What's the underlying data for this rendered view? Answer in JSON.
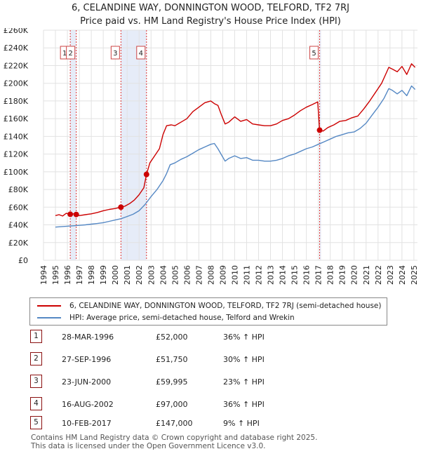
{
  "title_line1": "6, CELANDINE WAY, DONNINGTON WOOD, TELFORD, TF2 7RJ",
  "title_line2": "Price paid vs. HM Land Registry's House Price Index (HPI)",
  "chart_data": {
    "type": "line",
    "ylim": [
      0,
      260000
    ],
    "xlim": [
      1994,
      2025.3
    ],
    "y_ticks": [
      0,
      20000,
      40000,
      60000,
      80000,
      100000,
      120000,
      140000,
      160000,
      180000,
      200000,
      220000,
      240000,
      260000
    ],
    "y_tick_labels": [
      "£0",
      "£20K",
      "£40K",
      "£60K",
      "£80K",
      "£100K",
      "£120K",
      "£140K",
      "£160K",
      "£180K",
      "£200K",
      "£220K",
      "£240K",
      "£260K"
    ],
    "x_ticks": [
      1994,
      1995,
      1996,
      1997,
      1998,
      1999,
      2000,
      2001,
      2002,
      2003,
      2004,
      2005,
      2006,
      2007,
      2008,
      2009,
      2010,
      2011,
      2012,
      2013,
      2014,
      2015,
      2016,
      2017,
      2018,
      2019,
      2020,
      2021,
      2022,
      2023,
      2024,
      2025
    ],
    "x_tick_labels": [
      "1994",
      "1995",
      "1996",
      "1997",
      "1998",
      "1999",
      "2000",
      "2001",
      "2002",
      "2003",
      "2004",
      "2005",
      "2006",
      "2007",
      "2008",
      "2009",
      "2010",
      "2011",
      "2012",
      "2013",
      "2014",
      "2015",
      "2016",
      "2017",
      "2018",
      "2019",
      "2020",
      "2021",
      "2022",
      "2023",
      "2024",
      "2025"
    ],
    "series": [
      {
        "name": "6, CELANDINE WAY, DONNINGTON WOOD, TELFORD, TF2 7RJ (semi-detached house)",
        "color": "#cc0000",
        "points": [
          [
            1995.0,
            50500
          ],
          [
            1995.3,
            51500
          ],
          [
            1995.6,
            50000
          ],
          [
            1995.9,
            53000
          ],
          [
            1996.24,
            52000
          ],
          [
            1996.5,
            52500
          ],
          [
            1996.74,
            51750
          ],
          [
            1997.0,
            50500
          ],
          [
            1997.5,
            51500
          ],
          [
            1998.0,
            52500
          ],
          [
            1998.5,
            54000
          ],
          [
            1999.0,
            56000
          ],
          [
            1999.5,
            57500
          ],
          [
            2000.0,
            58500
          ],
          [
            2000.48,
            59995
          ],
          [
            2000.8,
            61000
          ],
          [
            2001.2,
            64000
          ],
          [
            2001.6,
            68000
          ],
          [
            2002.0,
            74000
          ],
          [
            2002.4,
            82000
          ],
          [
            2002.62,
            97000
          ],
          [
            2002.9,
            110000
          ],
          [
            2003.3,
            118000
          ],
          [
            2003.7,
            126000
          ],
          [
            2004.0,
            142000
          ],
          [
            2004.3,
            152000
          ],
          [
            2004.7,
            153000
          ],
          [
            2005.0,
            152000
          ],
          [
            2005.5,
            156000
          ],
          [
            2006.0,
            160000
          ],
          [
            2006.5,
            168000
          ],
          [
            2007.0,
            173000
          ],
          [
            2007.5,
            178000
          ],
          [
            2008.0,
            180000
          ],
          [
            2008.3,
            177000
          ],
          [
            2008.6,
            175000
          ],
          [
            2008.9,
            164000
          ],
          [
            2009.2,
            154000
          ],
          [
            2009.5,
            156000
          ],
          [
            2010.0,
            162000
          ],
          [
            2010.5,
            157000
          ],
          [
            2011.0,
            159000
          ],
          [
            2011.5,
            154000
          ],
          [
            2012.0,
            153000
          ],
          [
            2012.5,
            152000
          ],
          [
            2013.0,
            152000
          ],
          [
            2013.5,
            154000
          ],
          [
            2014.0,
            158000
          ],
          [
            2014.5,
            160000
          ],
          [
            2015.0,
            164000
          ],
          [
            2015.5,
            169000
          ],
          [
            2016.0,
            173000
          ],
          [
            2016.5,
            176000
          ],
          [
            2016.95,
            179000
          ],
          [
            2017.11,
            147000
          ],
          [
            2017.4,
            146000
          ],
          [
            2017.8,
            150000
          ],
          [
            2018.3,
            153000
          ],
          [
            2018.8,
            157000
          ],
          [
            2019.3,
            158000
          ],
          [
            2019.8,
            161000
          ],
          [
            2020.3,
            163000
          ],
          [
            2020.8,
            171000
          ],
          [
            2021.3,
            180000
          ],
          [
            2021.8,
            190000
          ],
          [
            2022.3,
            200000
          ],
          [
            2022.7,
            212000
          ],
          [
            2022.9,
            218000
          ],
          [
            2023.2,
            216000
          ],
          [
            2023.6,
            213000
          ],
          [
            2024.0,
            219000
          ],
          [
            2024.4,
            210000
          ],
          [
            2024.8,
            222000
          ],
          [
            2025.1,
            218000
          ]
        ]
      },
      {
        "name": "HPI: Average price, semi-detached house, Telford and Wrekin",
        "color": "#5588c4",
        "points": [
          [
            1995.0,
            37500
          ],
          [
            1995.5,
            38000
          ],
          [
            1996.0,
            38500
          ],
          [
            1996.5,
            39000
          ],
          [
            1997.0,
            39500
          ],
          [
            1997.5,
            40000
          ],
          [
            1998.0,
            40800
          ],
          [
            1998.5,
            41500
          ],
          [
            1999.0,
            42500
          ],
          [
            1999.5,
            44000
          ],
          [
            2000.0,
            45500
          ],
          [
            2000.5,
            47000
          ],
          [
            2001.0,
            49500
          ],
          [
            2001.5,
            52000
          ],
          [
            2002.0,
            56000
          ],
          [
            2002.5,
            63000
          ],
          [
            2003.0,
            72000
          ],
          [
            2003.5,
            80000
          ],
          [
            2004.0,
            90000
          ],
          [
            2004.3,
            98000
          ],
          [
            2004.6,
            108000
          ],
          [
            2005.0,
            110000
          ],
          [
            2005.5,
            114000
          ],
          [
            2006.0,
            117000
          ],
          [
            2006.5,
            121000
          ],
          [
            2007.0,
            125000
          ],
          [
            2007.5,
            128000
          ],
          [
            2008.0,
            131000
          ],
          [
            2008.3,
            132000
          ],
          [
            2008.6,
            126000
          ],
          [
            2008.9,
            119000
          ],
          [
            2009.2,
            112000
          ],
          [
            2009.5,
            115000
          ],
          [
            2010.0,
            118000
          ],
          [
            2010.5,
            115000
          ],
          [
            2011.0,
            116000
          ],
          [
            2011.5,
            113000
          ],
          [
            2012.0,
            113000
          ],
          [
            2012.5,
            112000
          ],
          [
            2013.0,
            112000
          ],
          [
            2013.5,
            113000
          ],
          [
            2014.0,
            115000
          ],
          [
            2014.5,
            118000
          ],
          [
            2015.0,
            120000
          ],
          [
            2015.5,
            123000
          ],
          [
            2016.0,
            126000
          ],
          [
            2016.5,
            128000
          ],
          [
            2017.0,
            131000
          ],
          [
            2017.5,
            134000
          ],
          [
            2018.0,
            137000
          ],
          [
            2018.5,
            140000
          ],
          [
            2019.0,
            142000
          ],
          [
            2019.5,
            144000
          ],
          [
            2020.0,
            145000
          ],
          [
            2020.5,
            149000
          ],
          [
            2021.0,
            155000
          ],
          [
            2021.5,
            164000
          ],
          [
            2022.0,
            173000
          ],
          [
            2022.5,
            183000
          ],
          [
            2022.9,
            194000
          ],
          [
            2023.2,
            192000
          ],
          [
            2023.6,
            188000
          ],
          [
            2024.0,
            192000
          ],
          [
            2024.4,
            186000
          ],
          [
            2024.8,
            197000
          ],
          [
            2025.1,
            193000
          ]
        ]
      }
    ],
    "sales": [
      {
        "num": "1",
        "x": 1996.24,
        "price": 52000
      },
      {
        "num": "2",
        "x": 1996.74,
        "price": 51750
      },
      {
        "num": "3",
        "x": 2000.48,
        "price": 59995
      },
      {
        "num": "4",
        "x": 2002.62,
        "price": 97000
      },
      {
        "num": "5",
        "x": 2017.11,
        "price": 147000
      }
    ],
    "shaded_periods": [
      [
        1996.24,
        1996.74
      ],
      [
        2000.48,
        2002.62
      ],
      [
        2017.11,
        2017.2
      ]
    ]
  },
  "legend": {
    "red_label": "6, CELANDINE WAY, DONNINGTON WOOD, TELFORD, TF2 7RJ (semi-detached house)",
    "blue_label": "HPI: Average price, semi-detached house, Telford and Wrekin"
  },
  "table": [
    {
      "num": "1",
      "date": "28-MAR-1996",
      "price": "£52,000",
      "hpi": "36% ↑ HPI"
    },
    {
      "num": "2",
      "date": "27-SEP-1996",
      "price": "£51,750",
      "hpi": "30% ↑ HPI"
    },
    {
      "num": "3",
      "date": "23-JUN-2000",
      "price": "£59,995",
      "hpi": "23% ↑ HPI"
    },
    {
      "num": "4",
      "date": "16-AUG-2002",
      "price": "£97,000",
      "hpi": "36% ↑ HPI"
    },
    {
      "num": "5",
      "date": "10-FEB-2017",
      "price": "£147,000",
      "hpi": "9% ↑ HPI"
    }
  ],
  "footer_line1": "Contains HM Land Registry data © Crown copyright and database right 2025.",
  "footer_line2": "This data is licensed under the Open Government Licence v3.0."
}
